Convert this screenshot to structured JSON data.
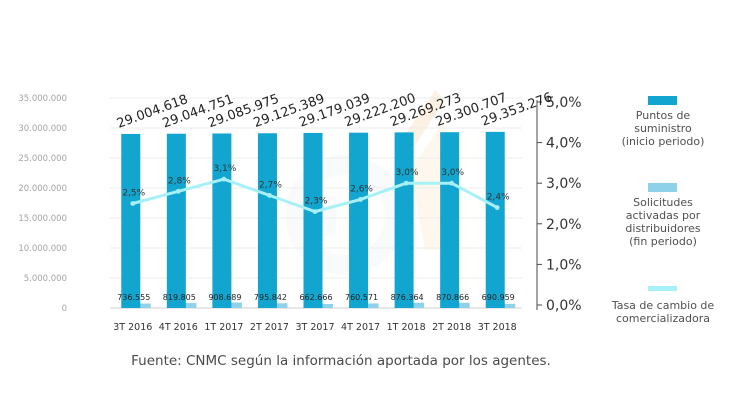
{
  "chart_data": {
    "type": "bar+line",
    "categories": [
      "3T 2016",
      "4T 2016",
      "1T 2017",
      "2T 2017",
      "3T 2017",
      "4T 2017",
      "1T 2018",
      "2T 2018",
      "3T 2018"
    ],
    "series": [
      {
        "name": "Puntos de suministro (inicio periodo)",
        "kind": "bar",
        "axis": "left",
        "color": "#12a5cf",
        "values": [
          29004618,
          29044751,
          29085975,
          29125389,
          29179039,
          29222200,
          29269273,
          29300707,
          29353276
        ],
        "labels": [
          "29.004.618",
          "29.044.751",
          "29.085.975",
          "29.125.389",
          "29.179.039",
          "29.222.200",
          "29.269.273",
          "29.300.707",
          "29.353.276"
        ]
      },
      {
        "name": "Solicitudes activadas por distribuidores (fin periodo)",
        "kind": "bar",
        "axis": "left",
        "color": "#8ed1e8",
        "values": [
          736555,
          819805,
          908689,
          795842,
          662666,
          760571,
          876364,
          870866,
          690959
        ],
        "labels": [
          "736.555",
          "819.805",
          "908.689",
          "795.842",
          "662.666",
          "760.571",
          "876.364",
          "870.866",
          "690.959"
        ]
      },
      {
        "name": "Tasa de cambio de comercializadora",
        "kind": "line",
        "axis": "right",
        "color": "#a8f0f7",
        "values": [
          2.5,
          2.8,
          3.1,
          2.7,
          2.3,
          2.6,
          3.0,
          3.0,
          2.4
        ],
        "labels": [
          "2,5%",
          "2,8%",
          "3,1%",
          "2,7%",
          "2,3%",
          "2,6%",
          "3,0%",
          "3,0%",
          "2,4%"
        ]
      }
    ],
    "left_axis": {
      "ylim": [
        0,
        35000000
      ],
      "ticks": [
        0,
        5000000,
        10000000,
        15000000,
        20000000,
        25000000,
        30000000,
        35000000
      ],
      "tick_labels": [
        "0",
        "5.000.000",
        "10.000.000",
        "15.000.000",
        "20.000.000",
        "25.000.000",
        "30.000.000",
        "35.000.000"
      ]
    },
    "right_axis": {
      "ticks": [
        0,
        1.0,
        2.0,
        3.0,
        4.0,
        5.0
      ],
      "tick_labels": [
        "0,0%",
        "1,0%",
        "2,0%",
        "3,0%",
        "4,0%",
        "5,0%"
      ]
    },
    "legend": {
      "position": "right",
      "entries": [
        {
          "lines": [
            "Puntos de",
            "suministro",
            "(inicio periodo)"
          ],
          "color": "#12a5cf"
        },
        {
          "lines": [
            "Solicitudes",
            "activadas por",
            "distribuidores",
            "(fin periodo)"
          ],
          "color": "#8ed1e8"
        },
        {
          "lines": [
            "Tasa de cambio de",
            "comercializadora"
          ],
          "color": "#a8f0f7"
        }
      ]
    },
    "source": "Fuente: CNMC según la información aportada por los agentes."
  }
}
